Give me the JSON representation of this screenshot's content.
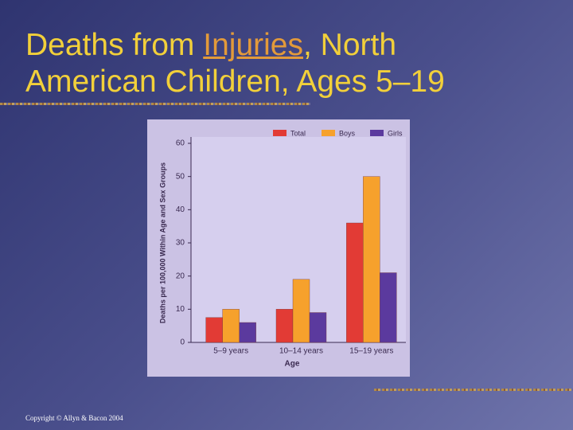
{
  "slide": {
    "title": [
      "Deaths from ",
      "Injuries",
      ", North",
      "American Children, Ages 5–19"
    ],
    "footer": "Copyright © Allyn & Bacon 2004"
  },
  "chart_data": {
    "type": "bar",
    "y_label": "Deaths per 100,000 Within Age and Sex Groups",
    "x_label": "Age",
    "categories": [
      "5–9 years",
      "10–14 years",
      "15–19 years"
    ],
    "series": [
      {
        "name": "Total",
        "color": "#e23b35",
        "values": [
          7.5,
          10,
          36
        ]
      },
      {
        "name": "Boys",
        "color": "#f6a12c",
        "values": [
          10,
          19,
          50
        ]
      },
      {
        "name": "Girls",
        "color": "#5b3a9e",
        "values": [
          6,
          9,
          21
        ]
      }
    ],
    "ylim": [
      0,
      60
    ],
    "yticks": [
      0,
      10,
      20,
      30,
      40,
      50,
      60
    ],
    "legend": "top"
  }
}
